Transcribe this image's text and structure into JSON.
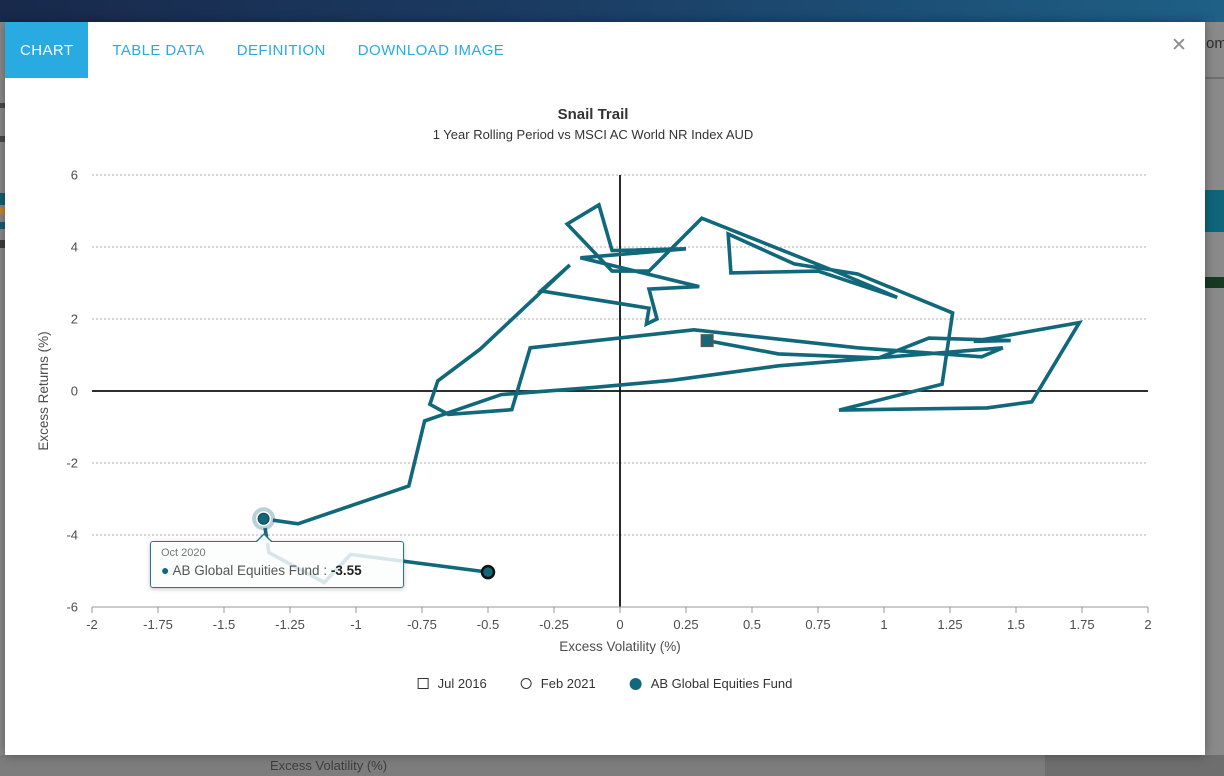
{
  "overlay": {
    "top_right_text": "om",
    "bottom_text": "Excess Volatility (%)",
    "close_label": "✕"
  },
  "tabs": [
    {
      "label": "CHART",
      "active": true
    },
    {
      "label": "TABLE DATA",
      "active": false
    },
    {
      "label": "DEFINITION",
      "active": false
    },
    {
      "label": "DOWNLOAD IMAGE",
      "active": false
    }
  ],
  "colors": {
    "accent_blue": "#29abe2",
    "trail": "#11687a",
    "axis_text": "#4d4d4d",
    "grid": "#b0b0b0"
  },
  "chart_data": {
    "type": "line",
    "title": "Snail Trail",
    "subtitle": "1 Year Rolling Period vs MSCI AC World NR Index AUD",
    "xlabel": "Excess Volatility (%)",
    "ylabel": "Excess Returns (%)",
    "xlim": [
      -2,
      2
    ],
    "ylim": [
      -6,
      6
    ],
    "xticks": [
      -2,
      -1.75,
      -1.5,
      -1.25,
      -1,
      -0.75,
      -0.5,
      -0.25,
      0,
      0.25,
      0.5,
      0.75,
      1,
      1.25,
      1.5,
      1.75,
      2
    ],
    "yticks": [
      6,
      4,
      2,
      0,
      -2,
      -4,
      -6
    ],
    "grid": "dotted horizontal, solid zero axes",
    "legend_position": "bottom",
    "series": [
      {
        "name": "AB Global Equities Fund",
        "color": "#11687a",
        "points": [
          [
            0.33,
            1.4
          ],
          [
            0.6,
            1.03
          ],
          [
            0.98,
            0.92
          ],
          [
            1.17,
            1.47
          ],
          [
            1.48,
            1.4
          ],
          [
            1.34,
            1.38
          ],
          [
            1.74,
            1.9
          ],
          [
            1.56,
            -0.3
          ],
          [
            1.39,
            -0.47
          ],
          [
            0.83,
            -0.53
          ],
          [
            1.22,
            0.19
          ],
          [
            1.26,
            2.17
          ],
          [
            0.9,
            3.25
          ],
          [
            0.66,
            3.53
          ],
          [
            0.41,
            4.36
          ],
          [
            0.42,
            3.28
          ],
          [
            0.75,
            3.33
          ],
          [
            1.05,
            2.6
          ],
          [
            0.83,
            3.28
          ],
          [
            0.31,
            4.8
          ],
          [
            0.11,
            3.33
          ],
          [
            -0.03,
            3.33
          ],
          [
            -0.2,
            4.64
          ],
          [
            -0.08,
            5.17
          ],
          [
            -0.03,
            3.9
          ],
          [
            0.25,
            3.95
          ],
          [
            -0.15,
            3.7
          ],
          [
            0.3,
            2.9
          ],
          [
            0.11,
            2.83
          ],
          [
            0.14,
            2.0
          ],
          [
            0.1,
            1.86
          ],
          [
            0.11,
            2.3
          ],
          [
            -0.3,
            2.78
          ],
          [
            -0.19,
            3.5
          ],
          [
            -0.53,
            1.16
          ],
          [
            -0.69,
            0.28
          ],
          [
            -0.72,
            -0.37
          ],
          [
            -0.65,
            -0.65
          ],
          [
            -0.41,
            -0.52
          ],
          [
            -0.34,
            1.2
          ],
          [
            0.28,
            1.7
          ],
          [
            0.9,
            1.2
          ],
          [
            1.37,
            0.95
          ],
          [
            1.45,
            1.2
          ],
          [
            0.6,
            0.7
          ],
          [
            0.2,
            0.3
          ],
          [
            -0.1,
            0.1
          ],
          [
            -0.45,
            -0.1
          ],
          [
            -0.74,
            -0.83
          ],
          [
            -0.8,
            -2.64
          ],
          [
            -1.22,
            -3.69
          ],
          [
            -1.35,
            -3.55
          ],
          [
            -1.33,
            -4.49
          ],
          [
            -1.12,
            -5.32
          ],
          [
            -1.02,
            -4.54
          ],
          [
            -0.5,
            -5.03
          ]
        ]
      }
    ],
    "markers": {
      "start": {
        "label": "Jul 2016",
        "shape": "square",
        "point": [
          0.33,
          1.4
        ]
      },
      "end": {
        "label": "Feb 2021",
        "shape": "circle",
        "point": [
          -0.5,
          -5.03
        ]
      }
    },
    "legend": [
      {
        "marker": "square",
        "label": "Jul 2016"
      },
      {
        "marker": "circle",
        "label": "Feb 2021"
      },
      {
        "marker": "dot",
        "label": "AB Global Equities Fund"
      }
    ],
    "tooltip": {
      "header": "Oct 2020",
      "series": "AB Global Equities Fund",
      "separator": " : ",
      "value": "-3.55",
      "point": [
        -1.35,
        -3.55
      ]
    }
  }
}
